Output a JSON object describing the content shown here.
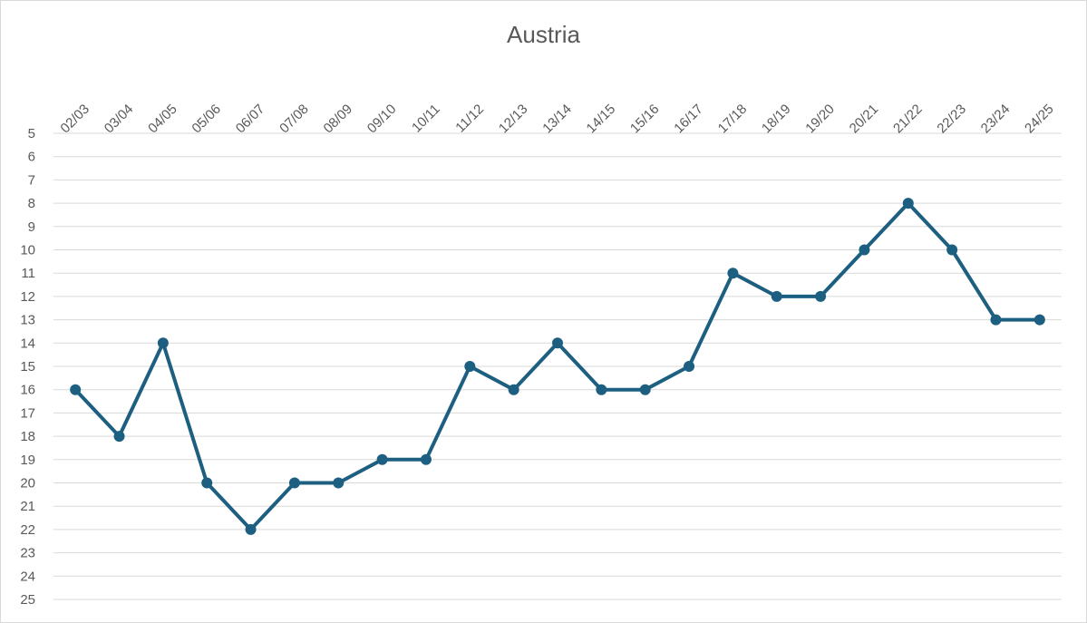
{
  "chart_data": {
    "type": "line",
    "title": "Austria",
    "xlabel": "",
    "ylabel": "",
    "categories": [
      "02/03",
      "03/04",
      "04/05",
      "05/06",
      "06/07",
      "07/08",
      "08/09",
      "09/10",
      "10/11",
      "11/12",
      "12/13",
      "13/14",
      "14/15",
      "15/16",
      "16/17",
      "17/18",
      "18/19",
      "19/20",
      "20/21",
      "21/22",
      "22/23",
      "23/24",
      "24/25"
    ],
    "series": [
      {
        "values": [
          16,
          18,
          14,
          20,
          22,
          20,
          20,
          19,
          19,
          15,
          16,
          14,
          16,
          16,
          15,
          11,
          12,
          12,
          10,
          8,
          10,
          13,
          13
        ],
        "color": "#1d5f80"
      }
    ],
    "ylim": [
      5,
      25
    ],
    "y_inverted": true,
    "y_ticks": [
      5,
      6,
      7,
      8,
      9,
      10,
      11,
      12,
      13,
      14,
      15,
      16,
      17,
      18,
      19,
      20,
      21,
      22,
      23,
      24,
      25
    ],
    "x_axis_position": "top",
    "grid": true,
    "legend": "none",
    "markers": true
  }
}
